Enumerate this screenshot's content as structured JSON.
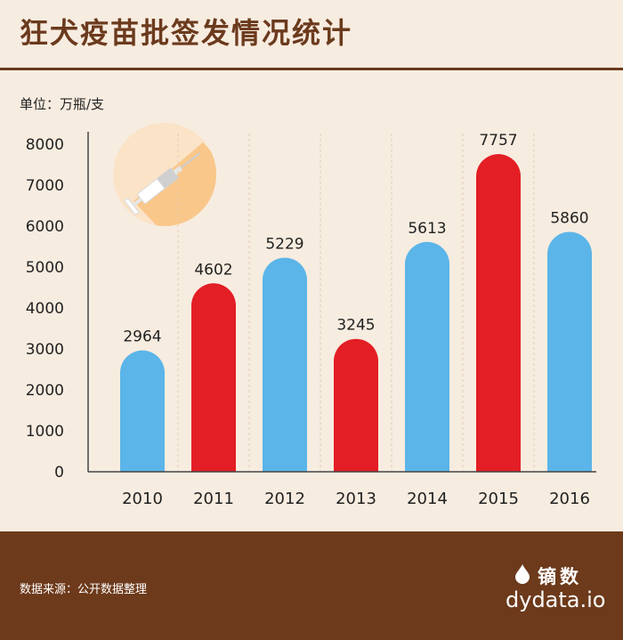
{
  "title": "狂犬疫苗批签发情况统计",
  "unit_label": "单位：万瓶/支",
  "source_text": "数据来源：公开数据整理",
  "brand": {
    "name": "镝数",
    "url": "dydata.io"
  },
  "colors": {
    "blue": "#5bb5e8",
    "red": "#e31e24",
    "title": "#6b3a1d",
    "footer": "#6d3a1b"
  },
  "decor": {
    "icon": "syringe-icon"
  },
  "chart_data": {
    "type": "bar",
    "title": "狂犬疫苗批签发情况统计",
    "ylabel": "单位：万瓶/支",
    "xlabel": "",
    "categories": [
      "2010",
      "2011",
      "2012",
      "2013",
      "2014",
      "2015",
      "2016"
    ],
    "values": [
      2964,
      4602,
      5229,
      3245,
      5613,
      7757,
      5860
    ],
    "bar_colors": [
      "#5bb5e8",
      "#e31e24",
      "#5bb5e8",
      "#e31e24",
      "#5bb5e8",
      "#e31e24",
      "#5bb5e8"
    ],
    "yticks": [
      0,
      1000,
      2000,
      3000,
      4000,
      5000,
      6000,
      7000,
      8000
    ],
    "ylim": [
      0,
      8000
    ],
    "grid": "vertical dashed"
  }
}
